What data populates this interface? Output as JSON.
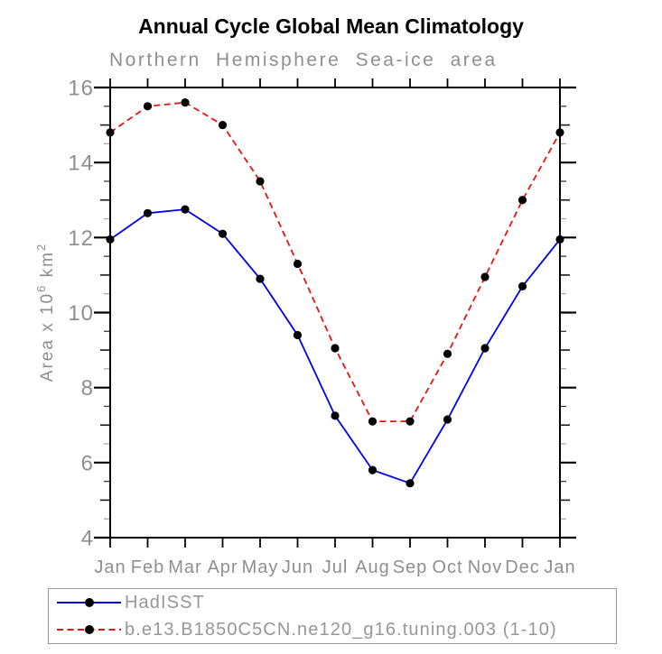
{
  "chart_data": {
    "type": "line",
    "title": "Annual Cycle Global Mean Climatology",
    "subtitle": "Northern Hemisphere Sea-ice area",
    "xlabel": "",
    "ylabel": "Area x 10^6 km^2",
    "ylabel_parts": {
      "pre": "Area x 10",
      "sup1": "6",
      "mid": " km",
      "sup2": "2"
    },
    "categories": [
      "Jan",
      "Feb",
      "Mar",
      "Apr",
      "May",
      "Jun",
      "Jul",
      "Aug",
      "Sep",
      "Oct",
      "Nov",
      "Dec",
      "Jan"
    ],
    "ylim": [
      4,
      16
    ],
    "ytick_major_step": 2,
    "ytick_minor_step": 0.5,
    "grid": false,
    "legend_position": "bottom-left-box",
    "series": [
      {
        "name": "HadISST",
        "color": "#0000ee",
        "line_style": "solid",
        "marker": "circle",
        "marker_color": "#000000",
        "values": [
          11.95,
          12.65,
          12.75,
          12.1,
          10.9,
          9.4,
          7.25,
          5.8,
          5.45,
          7.15,
          9.05,
          10.7,
          11.95
        ]
      },
      {
        "name": "b.e13.B1850C5CN.ne120_g16.tuning.003 (1-10)",
        "color": "#ee1111",
        "line_style": "dashed",
        "marker": "circle",
        "marker_color": "#000000",
        "values": [
          14.8,
          15.5,
          15.6,
          15.0,
          13.5,
          11.3,
          9.05,
          7.1,
          7.1,
          8.9,
          10.95,
          13.0,
          14.8
        ]
      }
    ],
    "colors": {
      "axis": "#000000",
      "labels": "#8f8f8f",
      "minor_tick_light": "#a8a8a8",
      "minor_tick_dark": "#3a3a3a"
    }
  }
}
